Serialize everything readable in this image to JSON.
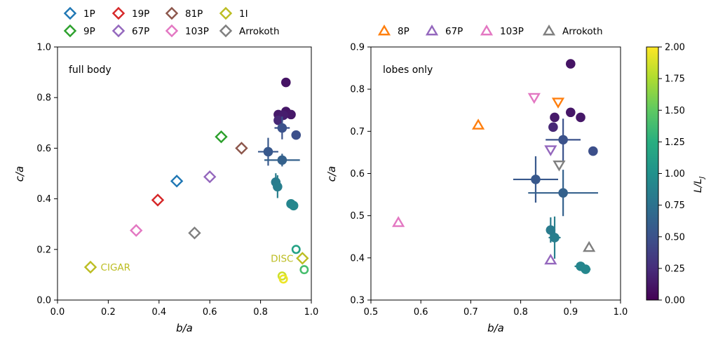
{
  "chart_data": [
    {
      "type": "scatter",
      "panel": "left",
      "annotation": "full body",
      "xlabel": "b/a",
      "ylabel": "c/a",
      "xlim": [
        0.0,
        1.0
      ],
      "ylim": [
        0.0,
        1.0
      ],
      "xticks": [
        "0.0",
        "0.2",
        "0.4",
        "0.6",
        "0.8",
        "1.0"
      ],
      "yticks": [
        "0.0",
        "0.2",
        "0.4",
        "0.6",
        "0.8",
        "1.0"
      ],
      "grid": false,
      "legend_position": "top",
      "legend": [
        {
          "label": "1P",
          "color": "#1f77b4",
          "marker": "diamond"
        },
        {
          "label": "19P",
          "color": "#d62728",
          "marker": "diamond"
        },
        {
          "label": "81P",
          "color": "#8c564b",
          "marker": "diamond"
        },
        {
          "label": "1I",
          "color": "#bcbd22",
          "marker": "diamond"
        },
        {
          "label": "9P",
          "color": "#2ca02c",
          "marker": "diamond"
        },
        {
          "label": "67P",
          "color": "#9467bd",
          "marker": "diamond"
        },
        {
          "label": "103P",
          "color": "#e377c2",
          "marker": "diamond"
        },
        {
          "label": "Arrokoth",
          "color": "#7f7f7f",
          "marker": "diamond"
        }
      ],
      "labels": [
        {
          "text": "CIGAR",
          "x": 0.17,
          "y": 0.13,
          "color": "#bcbd22"
        },
        {
          "text": "DISC",
          "x": 0.84,
          "y": 0.165,
          "color": "#bcbd22"
        }
      ],
      "comets": [
        {
          "name": "1P",
          "x": 0.47,
          "y": 0.47,
          "color": "#1f77b4"
        },
        {
          "name": "19P",
          "x": 0.395,
          "y": 0.395,
          "color": "#d62728"
        },
        {
          "name": "81P",
          "x": 0.725,
          "y": 0.6,
          "color": "#8c564b"
        },
        {
          "name": "1I",
          "x": 0.13,
          "y": 0.13,
          "color": "#bcbd22"
        },
        {
          "name": "1I",
          "x": 0.965,
          "y": 0.165,
          "color": "#bcbd22"
        },
        {
          "name": "9P",
          "x": 0.645,
          "y": 0.645,
          "color": "#2ca02c"
        },
        {
          "name": "67P",
          "x": 0.6,
          "y": 0.487,
          "color": "#9467bd"
        },
        {
          "name": "103P",
          "x": 0.31,
          "y": 0.275,
          "color": "#e377c2"
        },
        {
          "name": "Arrokoth",
          "x": 0.54,
          "y": 0.265,
          "color": "#7f7f7f"
        }
      ],
      "models": [
        {
          "x": 0.9,
          "y": 0.86,
          "L": 0.1
        },
        {
          "x": 0.9,
          "y": 0.745,
          "L": 0.12
        },
        {
          "x": 0.87,
          "y": 0.733,
          "L": 0.14
        },
        {
          "x": 0.92,
          "y": 0.733,
          "L": 0.13
        },
        {
          "x": 0.89,
          "y": 0.73,
          "L": 0.16
        },
        {
          "x": 0.87,
          "y": 0.71,
          "L": 0.22
        },
        {
          "x": 0.885,
          "y": 0.68,
          "L": 0.5,
          "xerr": 0.03,
          "yerr": 0.045
        },
        {
          "x": 0.94,
          "y": 0.652,
          "L": 0.48
        },
        {
          "x": 0.83,
          "y": 0.586,
          "L": 0.55,
          "xerr": 0.04,
          "yerr": 0.055
        },
        {
          "x": 0.885,
          "y": 0.553,
          "L": 0.62,
          "xerr": 0.07,
          "yerr": 0.025
        },
        {
          "x": 0.86,
          "y": 0.466,
          "L": 0.82,
          "yerr": 0.035
        },
        {
          "x": 0.867,
          "y": 0.448,
          "L": 0.85,
          "xerr": 0.01,
          "yerr": 0.045
        },
        {
          "x": 0.92,
          "y": 0.38,
          "L": 0.9,
          "xerr": 0.01
        },
        {
          "x": 0.93,
          "y": 0.373,
          "L": 0.92,
          "xerr": 0.015
        },
        {
          "x": 0.94,
          "y": 0.2,
          "L": 1.15,
          "ring": true
        },
        {
          "x": 0.972,
          "y": 0.12,
          "L": 1.4,
          "ring": true
        },
        {
          "x": 0.885,
          "y": 0.095,
          "L": 1.85,
          "ring": true
        },
        {
          "x": 0.89,
          "y": 0.083,
          "L": 1.95,
          "ring": true
        }
      ]
    },
    {
      "type": "scatter",
      "panel": "right",
      "annotation": "lobes only",
      "xlabel": "b/a",
      "ylabel": "c/a",
      "xlim": [
        0.5,
        1.0
      ],
      "ylim": [
        0.3,
        0.9
      ],
      "xticks": [
        "0.5",
        "0.6",
        "0.7",
        "0.8",
        "0.9",
        "1.0"
      ],
      "yticks": [
        "0.3",
        "0.4",
        "0.5",
        "0.6",
        "0.7",
        "0.8",
        "0.9"
      ],
      "grid": false,
      "legend_position": "top",
      "legend": [
        {
          "label": "8P",
          "color": "#ff7f0e",
          "marker": "triangle"
        },
        {
          "label": "67P",
          "color": "#9467bd",
          "marker": "triangle"
        },
        {
          "label": "103P",
          "color": "#e377c2",
          "marker": "triangle"
        },
        {
          "label": "Arrokoth",
          "color": "#7f7f7f",
          "marker": "triangle"
        }
      ],
      "comets": [
        {
          "name": "8P",
          "x": 0.715,
          "y": 0.715,
          "color": "#ff7f0e",
          "marker": "up"
        },
        {
          "name": "8P",
          "x": 0.875,
          "y": 0.769,
          "color": "#ff7f0e",
          "marker": "down"
        },
        {
          "name": "67P",
          "x": 0.86,
          "y": 0.395,
          "color": "#9467bd",
          "marker": "up"
        },
        {
          "name": "67P",
          "x": 0.86,
          "y": 0.656,
          "color": "#9467bd",
          "marker": "down"
        },
        {
          "name": "103P",
          "x": 0.555,
          "y": 0.484,
          "color": "#e377c2",
          "marker": "up"
        },
        {
          "name": "103P",
          "x": 0.827,
          "y": 0.78,
          "color": "#e377c2",
          "marker": "down"
        },
        {
          "name": "Arrokoth",
          "x": 0.937,
          "y": 0.425,
          "color": "#7f7f7f",
          "marker": "up"
        },
        {
          "name": "Arrokoth",
          "x": 0.877,
          "y": 0.62,
          "color": "#7f7f7f",
          "marker": "down"
        }
      ],
      "models": [
        {
          "x": 0.9,
          "y": 0.86,
          "L": 0.1
        },
        {
          "x": 0.9,
          "y": 0.745,
          "L": 0.12
        },
        {
          "x": 0.868,
          "y": 0.733,
          "L": 0.14
        },
        {
          "x": 0.92,
          "y": 0.733,
          "L": 0.13
        },
        {
          "x": 0.865,
          "y": 0.71,
          "L": 0.22
        },
        {
          "x": 0.885,
          "y": 0.68,
          "L": 0.5,
          "xerr": 0.035,
          "yerr": 0.05
        },
        {
          "x": 0.945,
          "y": 0.653,
          "L": 0.48
        },
        {
          "x": 0.83,
          "y": 0.586,
          "L": 0.55,
          "xerr": 0.045,
          "yerr": 0.055
        },
        {
          "x": 0.885,
          "y": 0.554,
          "L": 0.62,
          "xerr": 0.07,
          "yerr": 0.055
        },
        {
          "x": 0.86,
          "y": 0.466,
          "L": 0.82,
          "yerr": 0.03
        },
        {
          "x": 0.868,
          "y": 0.448,
          "L": 0.85,
          "xerr": 0.012,
          "yerr": 0.05
        },
        {
          "x": 0.92,
          "y": 0.38,
          "L": 0.9,
          "xerr": 0.012
        },
        {
          "x": 0.93,
          "y": 0.373,
          "L": 0.92,
          "xerr": 0.01
        }
      ]
    }
  ],
  "colorbar": {
    "label_main": "L/L",
    "label_sub": "J",
    "min": 0.0,
    "max": 2.0,
    "ticks": [
      "0.00",
      "0.25",
      "0.50",
      "0.75",
      "1.00",
      "1.25",
      "1.50",
      "1.75",
      "2.00"
    ]
  }
}
